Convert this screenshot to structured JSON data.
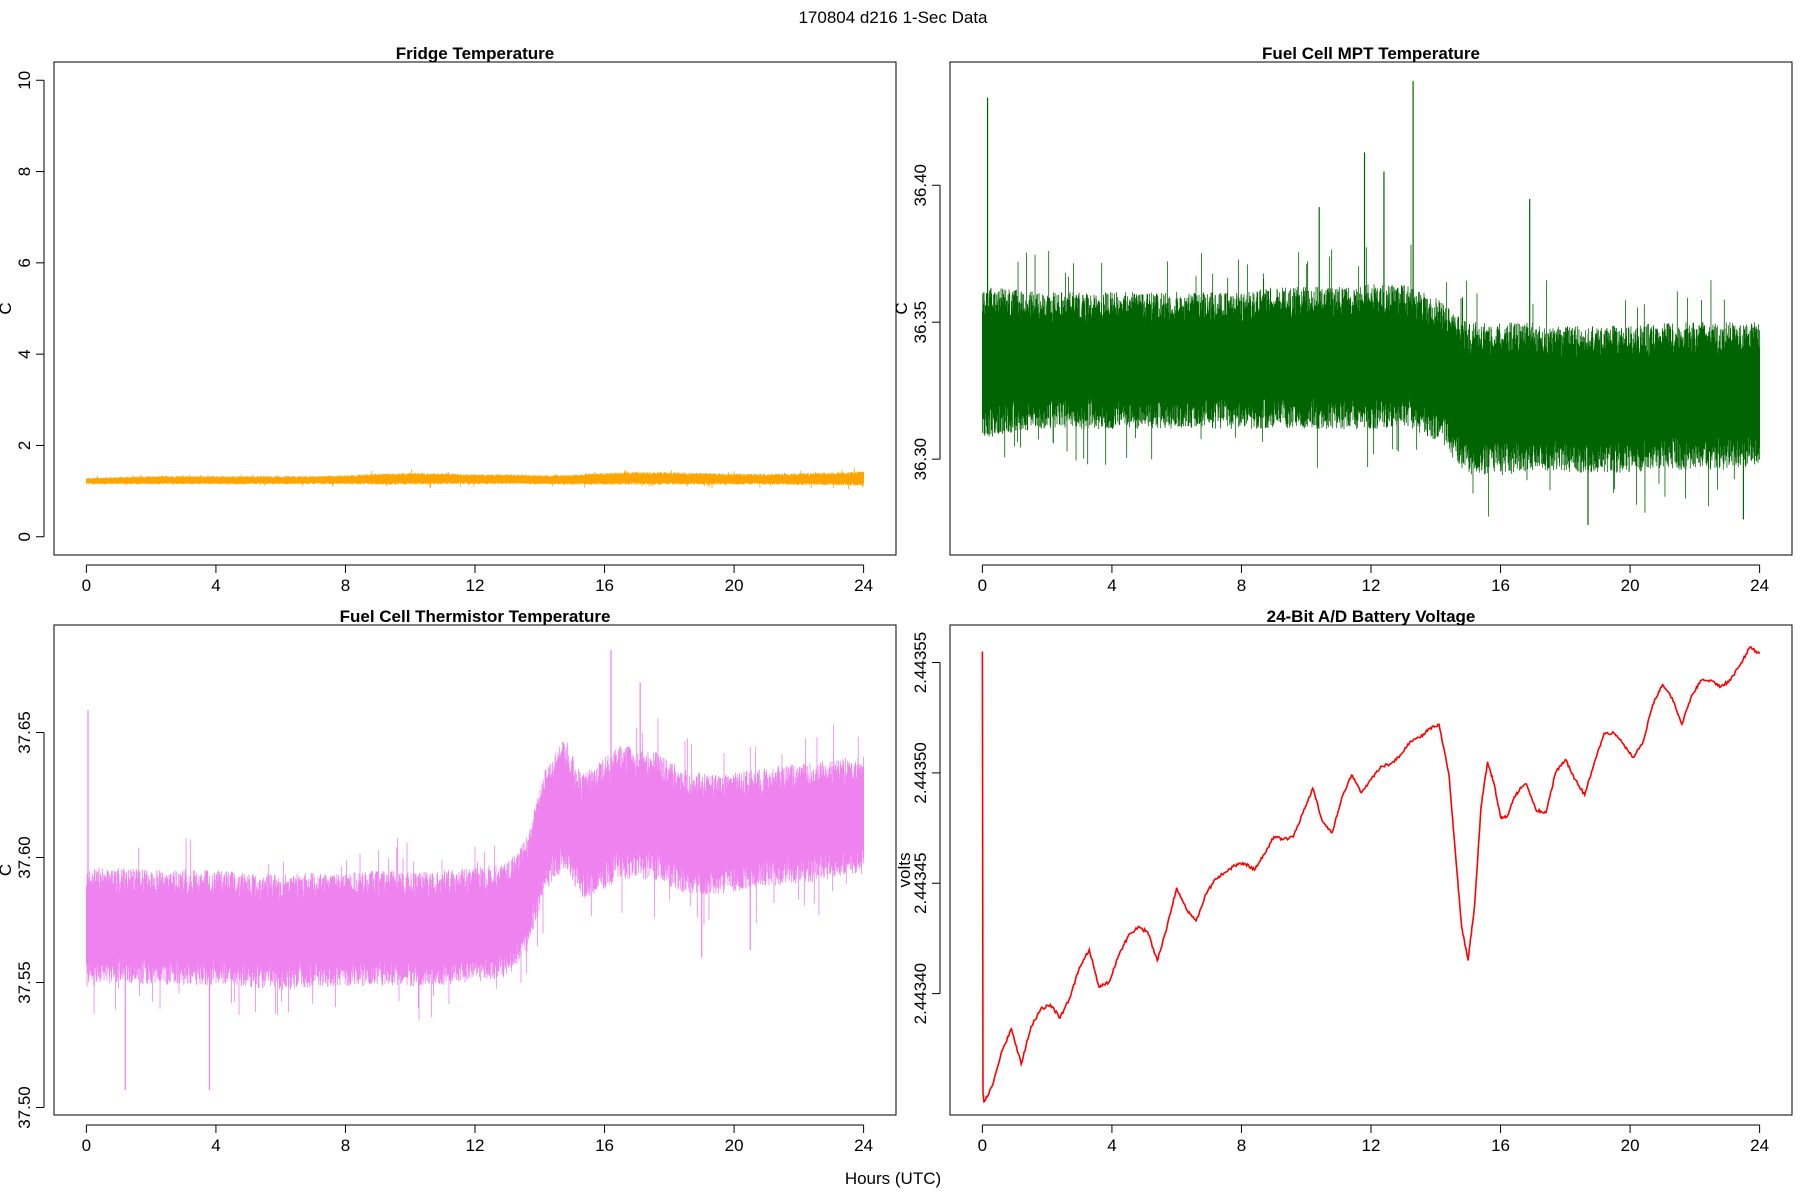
{
  "figure": {
    "title": "170804   d216   1-Sec Data",
    "xlabel": "Hours (UTC)"
  },
  "chart_data": [
    {
      "type": "line",
      "title": "Fridge Temperature",
      "ylabel": "C",
      "xlabel": "",
      "xlim": [
        -1.0,
        25.0
      ],
      "ylim": [
        -0.4,
        10.4
      ],
      "xticks": [
        0,
        4,
        8,
        12,
        16,
        20,
        24
      ],
      "yticks": [
        0,
        2,
        4,
        6,
        8,
        10
      ],
      "ytick_labels": [
        "0",
        "2",
        "4",
        "6",
        "8",
        "10"
      ],
      "color": "#ffa500",
      "render": "noise-band",
      "x": [
        0,
        1,
        2,
        3,
        4,
        5,
        6,
        7,
        8,
        9,
        10,
        11,
        12,
        13,
        14,
        15,
        16,
        17,
        18,
        19,
        20,
        21,
        22,
        23,
        24
      ],
      "center": [
        1.22,
        1.23,
        1.24,
        1.24,
        1.24,
        1.24,
        1.24,
        1.24,
        1.25,
        1.26,
        1.27,
        1.27,
        1.26,
        1.26,
        1.25,
        1.25,
        1.27,
        1.28,
        1.28,
        1.27,
        1.26,
        1.26,
        1.26,
        1.27,
        1.27
      ],
      "spread": [
        0.07,
        0.08,
        0.09,
        0.09,
        0.09,
        0.09,
        0.09,
        0.09,
        0.1,
        0.12,
        0.13,
        0.12,
        0.11,
        0.11,
        0.1,
        0.11,
        0.13,
        0.14,
        0.14,
        0.13,
        0.12,
        0.12,
        0.13,
        0.14,
        0.16
      ]
    },
    {
      "type": "line",
      "title": "Fuel Cell MPT Temperature",
      "ylabel": "C",
      "xlabel": "",
      "xlim": [
        -1.0,
        25.0
      ],
      "ylim": [
        36.265,
        36.445
      ],
      "xticks": [
        0,
        4,
        8,
        12,
        16,
        20,
        24
      ],
      "yticks": [
        36.3,
        36.35,
        36.4
      ],
      "ytick_labels": [
        "36.30",
        "36.35",
        "36.40"
      ],
      "color": "#006400",
      "render": "noise-band",
      "x": [
        0,
        1,
        2,
        3,
        4,
        5,
        6,
        7,
        8,
        9,
        10,
        11,
        12,
        13,
        14,
        15,
        16,
        17,
        18,
        19,
        20,
        21,
        22,
        23,
        24
      ],
      "center": [
        36.335,
        36.336,
        36.336,
        36.336,
        36.336,
        36.336,
        36.336,
        36.336,
        36.336,
        36.337,
        36.337,
        36.337,
        36.337,
        36.338,
        36.333,
        36.322,
        36.322,
        36.323,
        36.322,
        36.322,
        36.322,
        36.323,
        36.323,
        36.323,
        36.324
      ],
      "spread": [
        0.028,
        0.026,
        0.025,
        0.025,
        0.025,
        0.025,
        0.025,
        0.025,
        0.025,
        0.026,
        0.026,
        0.026,
        0.027,
        0.026,
        0.026,
        0.028,
        0.028,
        0.027,
        0.027,
        0.027,
        0.027,
        0.027,
        0.027,
        0.027,
        0.026
      ],
      "spikes": [
        [
          0.16,
          36.432
        ],
        [
          11.8,
          36.412
        ],
        [
          12.4,
          36.405
        ],
        [
          13.3,
          36.438
        ],
        [
          16.9,
          36.395
        ],
        [
          10.4,
          36.392
        ],
        [
          18.7,
          36.276
        ],
        [
          23.5,
          36.278
        ]
      ]
    },
    {
      "type": "line",
      "title": "Fuel Cell Thermistor Temperature",
      "ylabel": "C",
      "xlabel": "",
      "xlim": [
        -1.0,
        25.0
      ],
      "ylim": [
        37.497,
        37.693
      ],
      "xticks": [
        0,
        4,
        8,
        12,
        16,
        20,
        24
      ],
      "yticks": [
        37.5,
        37.55,
        37.6,
        37.65
      ],
      "ytick_labels": [
        "37.50",
        "37.55",
        "37.60",
        "37.65"
      ],
      "color": "#ee82ee",
      "render": "noise-band",
      "x": [
        0,
        1,
        2,
        3,
        4,
        5,
        6,
        7,
        8,
        9,
        10,
        11,
        12,
        13,
        13.6,
        14.2,
        14.8,
        15.3,
        15.8,
        16.5,
        17.5,
        18.5,
        19.5,
        20.5,
        21.5,
        22.5,
        23.5,
        24
      ],
      "center": [
        37.572,
        37.573,
        37.572,
        37.572,
        37.572,
        37.571,
        37.57,
        37.571,
        37.571,
        37.572,
        37.571,
        37.572,
        37.573,
        37.575,
        37.585,
        37.612,
        37.622,
        37.608,
        37.612,
        37.618,
        37.617,
        37.61,
        37.609,
        37.611,
        37.613,
        37.614,
        37.616,
        37.617
      ],
      "spread": [
        0.024,
        0.023,
        0.023,
        0.023,
        0.023,
        0.023,
        0.023,
        0.023,
        0.023,
        0.023,
        0.023,
        0.023,
        0.023,
        0.023,
        0.023,
        0.025,
        0.026,
        0.025,
        0.026,
        0.027,
        0.026,
        0.025,
        0.024,
        0.024,
        0.024,
        0.024,
        0.024,
        0.024
      ],
      "spikes": [
        [
          0.05,
          37.659
        ],
        [
          1.2,
          37.507
        ],
        [
          3.8,
          37.507
        ],
        [
          16.2,
          37.683
        ],
        [
          17.1,
          37.67
        ],
        [
          19.0,
          37.56
        ],
        [
          20.5,
          37.563
        ]
      ]
    },
    {
      "type": "line",
      "title": "24-Bit A/D Battery Voltage",
      "ylabel": "volts",
      "xlabel": "",
      "xlim": [
        -1.0,
        25.0
      ],
      "ylim": [
        2.443345,
        2.443567
      ],
      "xticks": [
        0,
        4,
        8,
        12,
        16,
        20,
        24
      ],
      "yticks": [
        2.4434,
        2.44345,
        2.4435,
        2.44355
      ],
      "ytick_labels": [
        "2.44340",
        "2.44345",
        "2.44350",
        "2.44355"
      ],
      "color": "#ff0000",
      "render": "line",
      "x": [
        0,
        0.02,
        0.05,
        0.3,
        0.6,
        0.9,
        1.2,
        1.5,
        1.8,
        2.1,
        2.4,
        2.7,
        3.0,
        3.3,
        3.6,
        3.9,
        4.2,
        4.5,
        4.8,
        5.1,
        5.4,
        5.7,
        6.0,
        6.3,
        6.6,
        6.9,
        7.2,
        7.5,
        7.8,
        8.1,
        8.4,
        8.7,
        9.0,
        9.3,
        9.6,
        9.9,
        10.2,
        10.5,
        10.8,
        11.1,
        11.4,
        11.7,
        12.0,
        12.3,
        12.6,
        12.9,
        13.2,
        13.5,
        13.8,
        14.1,
        14.4,
        14.6,
        14.8,
        15.0,
        15.2,
        15.4,
        15.6,
        15.8,
        16.0,
        16.2,
        16.4,
        16.6,
        16.8,
        17.1,
        17.4,
        17.7,
        18.0,
        18.3,
        18.6,
        18.9,
        19.2,
        19.5,
        19.8,
        20.1,
        20.4,
        20.7,
        21.0,
        21.3,
        21.6,
        21.9,
        22.2,
        22.5,
        22.8,
        23.1,
        23.4,
        23.7,
        24.0
      ],
      "y": [
        2.443555,
        2.443355,
        2.443351,
        2.443358,
        2.443374,
        2.443384,
        2.443368,
        2.443385,
        2.443393,
        2.443395,
        2.443389,
        2.443398,
        2.443412,
        2.44342,
        2.443403,
        2.443405,
        2.443417,
        2.443426,
        2.44343,
        2.443428,
        2.443415,
        2.44343,
        2.443448,
        2.443438,
        2.443433,
        2.443445,
        2.443452,
        2.443455,
        2.443458,
        2.443459,
        2.443456,
        2.443463,
        2.443471,
        2.44347,
        2.443471,
        2.443482,
        2.443493,
        2.443478,
        2.443473,
        2.443489,
        2.443499,
        2.443491,
        2.443497,
        2.443503,
        2.443504,
        2.443508,
        2.443514,
        2.443516,
        2.44352,
        2.443522,
        2.4435,
        2.443465,
        2.44343,
        2.443415,
        2.44344,
        2.443485,
        2.443505,
        2.443495,
        2.44348,
        2.44348,
        2.443488,
        2.443493,
        2.443495,
        2.443483,
        2.443482,
        2.4435,
        2.443506,
        2.443497,
        2.44349,
        2.443505,
        2.443518,
        2.443518,
        2.443513,
        2.443507,
        2.443514,
        2.443531,
        2.44354,
        2.443534,
        2.443522,
        2.443535,
        2.443542,
        2.443542,
        2.443539,
        2.443542,
        2.443549,
        2.443557,
        2.443554
      ]
    }
  ]
}
